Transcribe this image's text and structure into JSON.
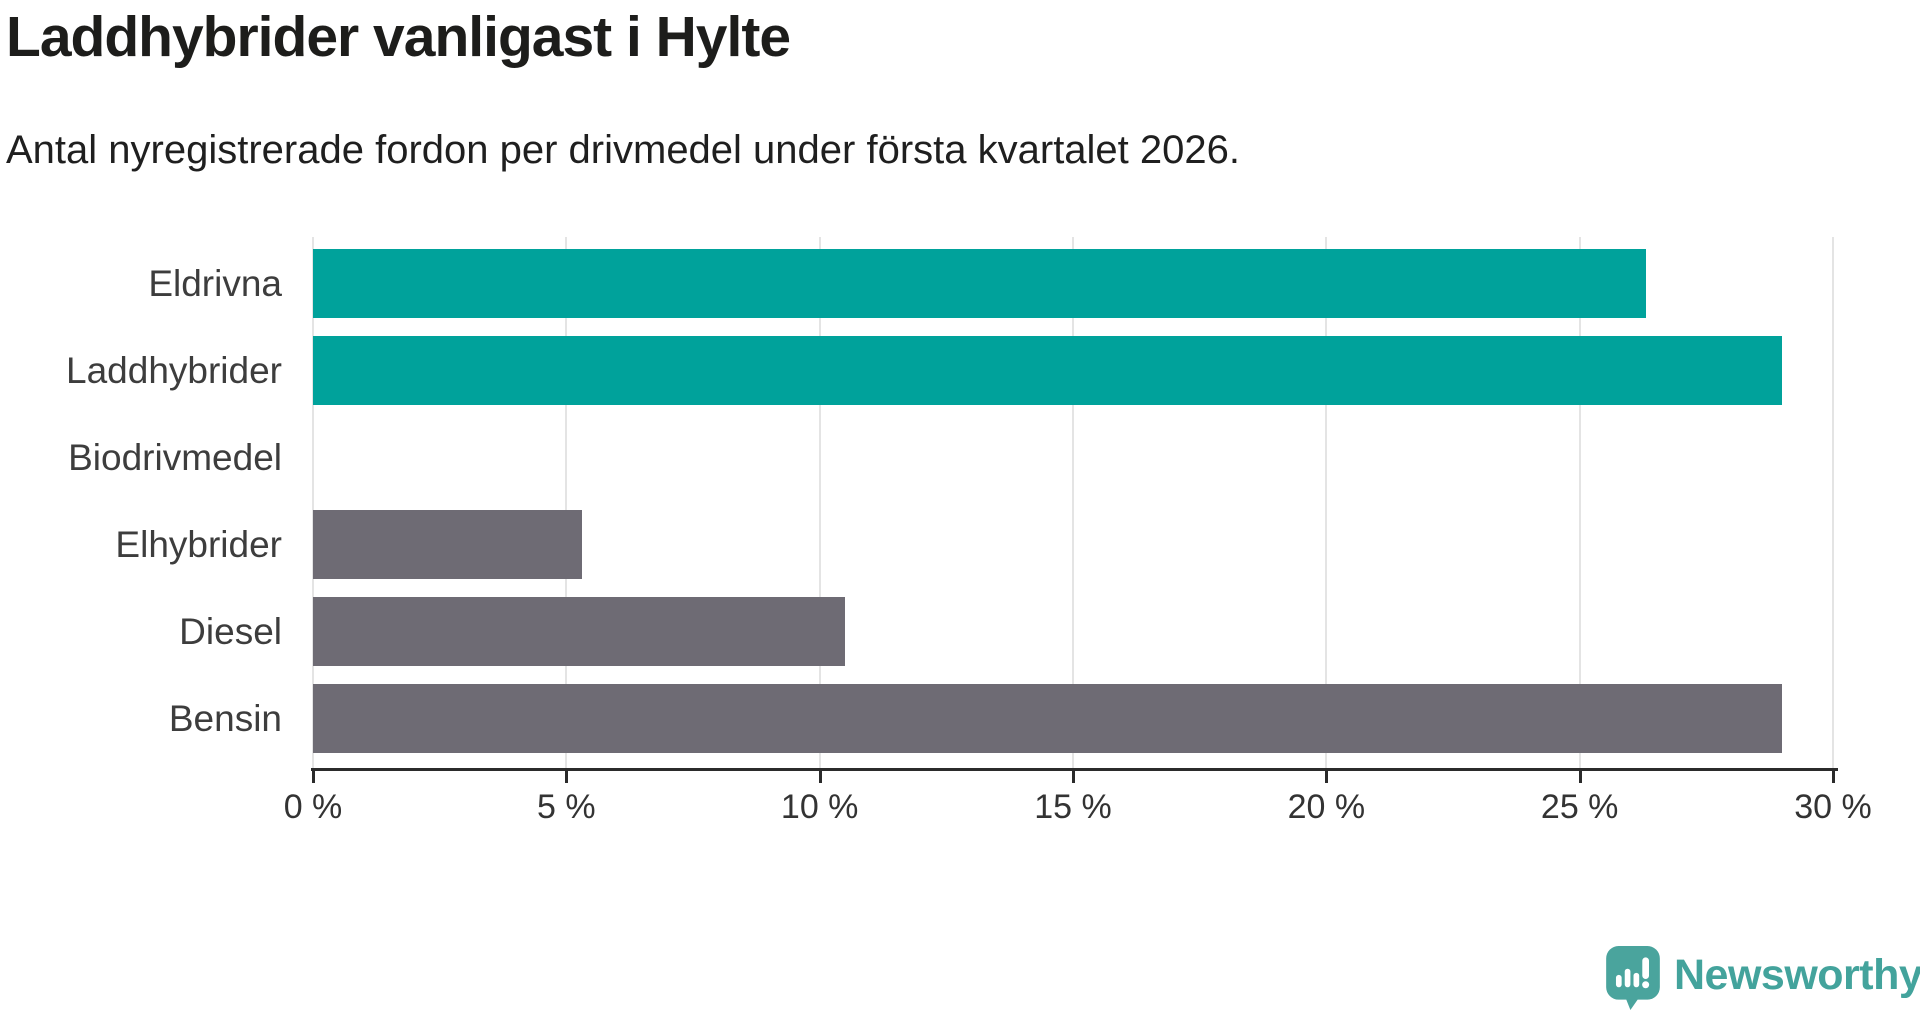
{
  "header": {
    "title": "Laddhybrider vanligast i Hylte",
    "subtitle": "Antal nyregistrerade fordon per drivmedel under första kvartalet 2026."
  },
  "chart_data": {
    "type": "bar",
    "orientation": "horizontal",
    "title": "Laddhybrider vanligast i Hylte",
    "subtitle": "Antal nyregistrerade fordon per drivmedel under första kvartalet 2026.",
    "categories": [
      "Eldrivna",
      "Laddhybrider",
      "Biodrivmedel",
      "Elhybrider",
      "Diesel",
      "Bensin"
    ],
    "values": [
      26.3,
      29,
      0,
      5.3,
      10.5,
      29
    ],
    "unit": "%",
    "xlabel": "",
    "ylabel": "",
    "xlim": [
      0,
      30
    ],
    "x_ticks": [
      0,
      5,
      10,
      15,
      20,
      25,
      30
    ],
    "x_tick_labels": [
      "0 %",
      "5 %",
      "10 %",
      "15 %",
      "20 %",
      "25 %",
      "30 %"
    ],
    "bar_colors": [
      "#00A29B",
      "#00A29B",
      "#6E6B74",
      "#6E6B74",
      "#6E6B74",
      "#6E6B74"
    ],
    "grid": true,
    "legend": false
  },
  "colors": {
    "highlight": "#00A29B",
    "muted": "#6E6B74",
    "gridline": "#E4E4E4",
    "axis": "#2B2B2B",
    "title_text": "#1D1D1B",
    "label_text": "#3D3D3D",
    "brand": "#43A39C"
  },
  "footer": {
    "brand_name": "Newsworthy",
    "logo_icon": "newsworthy-bubble-bar-chart-icon"
  }
}
